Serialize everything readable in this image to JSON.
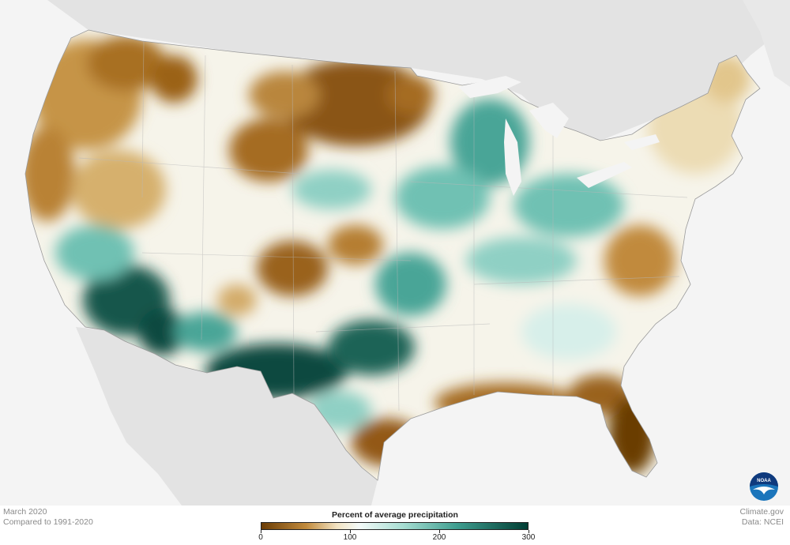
{
  "map": {
    "region": "Contiguous United States",
    "logo": "noaa-logo-icon"
  },
  "footer": {
    "date_label": "March 2020",
    "comparison_label": "Compared to 1991-2020",
    "source_site": "Climate.gov",
    "data_source": "Data: NCEI"
  },
  "legend": {
    "title": "Percent of average precipitation",
    "range": [
      0,
      300
    ],
    "tick_values": [
      0,
      100,
      200,
      300
    ],
    "tick_labels": [
      "0",
      "100",
      "200",
      "300"
    ],
    "color_stops": [
      {
        "value": 0,
        "color": "#6b3d05"
      },
      {
        "value": 50,
        "color": "#c18a3c"
      },
      {
        "value": 85,
        "color": "#f2e3c2"
      },
      {
        "value": 110,
        "color": "#f4fbf9"
      },
      {
        "value": 160,
        "color": "#a6ddd2"
      },
      {
        "value": 220,
        "color": "#3f9e90"
      },
      {
        "value": 300,
        "color": "#003d33"
      }
    ]
  },
  "colors": {
    "very_dry": "#6b3d05",
    "dry": "#b98236",
    "near_normal": "#f4f4ee",
    "wet": "#6fc1b3",
    "very_wet": "#0a4a40",
    "background_land": "#dddddd",
    "background_water": "#f4f4f4"
  }
}
